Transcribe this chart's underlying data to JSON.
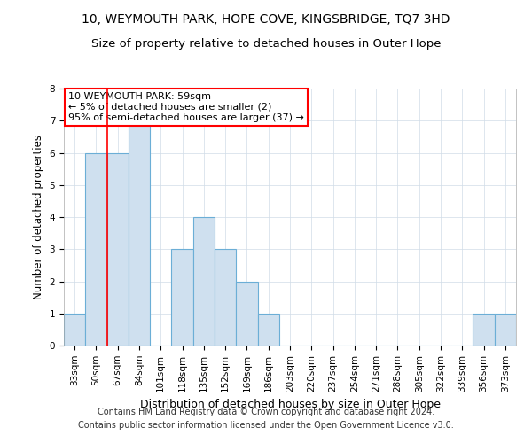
{
  "title": "10, WEYMOUTH PARK, HOPE COVE, KINGSBRIDGE, TQ7 3HD",
  "subtitle": "Size of property relative to detached houses in Outer Hope",
  "xlabel": "Distribution of detached houses by size in Outer Hope",
  "ylabel": "Number of detached properties",
  "categories": [
    "33sqm",
    "50sqm",
    "67sqm",
    "84sqm",
    "101sqm",
    "118sqm",
    "135sqm",
    "152sqm",
    "169sqm",
    "186sqm",
    "203sqm",
    "220sqm",
    "237sqm",
    "254sqm",
    "271sqm",
    "288sqm",
    "305sqm",
    "322sqm",
    "339sqm",
    "356sqm",
    "373sqm"
  ],
  "values": [
    1,
    6,
    6,
    7,
    0,
    3,
    4,
    3,
    2,
    1,
    0,
    0,
    0,
    0,
    0,
    0,
    0,
    0,
    0,
    1,
    1
  ],
  "bar_color": "#cfe0ef",
  "bar_edge_color": "#6baed6",
  "property_line_x": 1.5,
  "annotation_text": "10 WEYMOUTH PARK: 59sqm\n← 5% of detached houses are smaller (2)\n95% of semi-detached houses are larger (37) →",
  "annotation_box_color": "white",
  "annotation_box_edge_color": "red",
  "property_line_color": "red",
  "ylim": [
    0,
    8
  ],
  "yticks": [
    0,
    1,
    2,
    3,
    4,
    5,
    6,
    7,
    8
  ],
  "footer_line1": "Contains HM Land Registry data © Crown copyright and database right 2024.",
  "footer_line2": "Contains public sector information licensed under the Open Government Licence v3.0.",
  "title_fontsize": 10,
  "subtitle_fontsize": 9.5,
  "xlabel_fontsize": 9,
  "ylabel_fontsize": 8.5,
  "tick_fontsize": 7.5,
  "footer_fontsize": 7,
  "annotation_fontsize": 8
}
